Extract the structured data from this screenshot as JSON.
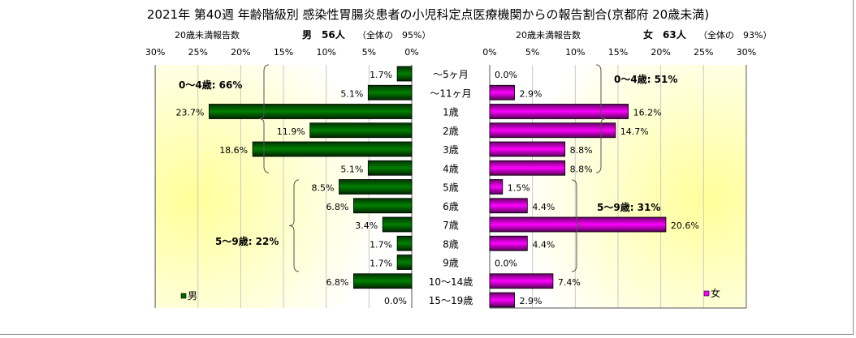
{
  "chart_data": {
    "type": "bar",
    "title": "2021年 第40週 年齢階級別 感染性胃腸炎患者の小児科定点医療機関からの報告割合(京都府 20歳未満)",
    "categories": [
      "～5ヶ月",
      "～11ヶ月",
      "1歳",
      "2歳",
      "3歳",
      "4歳",
      "5歳",
      "6歳",
      "7歳",
      "8歳",
      "9歳",
      "10～14歳",
      "15～19歳"
    ],
    "xlim": [
      0,
      30
    ],
    "ticks": [
      "0%",
      "5%",
      "10%",
      "15%",
      "20%",
      "25%",
      "30%"
    ],
    "grid": true,
    "series": [
      {
        "name": "男",
        "color": "#006400",
        "header_label": "20歳未満報告数",
        "header_count": "男　56人",
        "header_share": "（全体の　95%）",
        "values": [
          1.7,
          5.1,
          23.7,
          11.9,
          18.6,
          5.1,
          8.5,
          6.8,
          3.4,
          1.7,
          1.7,
          6.8,
          0.0
        ],
        "labels": [
          "1.7%",
          "5.1%",
          "23.7%",
          "11.9%",
          "18.6%",
          "5.1%",
          "8.5%",
          "6.8%",
          "3.4%",
          "1.7%",
          "1.7%",
          "6.8%",
          "0.0%"
        ],
        "groups": [
          {
            "label": "0～4歳: 66%"
          },
          {
            "label": "5～9歳: 22%"
          }
        ],
        "legend": "男",
        "legend_placement": "bottom-left"
      },
      {
        "name": "女",
        "color": "#ff00ff",
        "header_label": "20歳未満報告数",
        "header_count": "女　63人",
        "header_share": "（全体の　93%）",
        "values": [
          0.0,
          2.9,
          16.2,
          14.7,
          8.8,
          8.8,
          1.5,
          4.4,
          20.6,
          4.4,
          0.0,
          7.4,
          2.9
        ],
        "labels": [
          "0.0%",
          "2.9%",
          "16.2%",
          "14.7%",
          "8.8%",
          "8.8%",
          "1.5%",
          "4.4%",
          "20.6%",
          "4.4%",
          "0.0%",
          "7.4%",
          "2.9%"
        ],
        "groups": [
          {
            "label": "0～4歳: 51%"
          },
          {
            "label": "5～9歳: 31%"
          }
        ],
        "legend": "女",
        "legend_placement": "bottom-right"
      }
    ]
  }
}
